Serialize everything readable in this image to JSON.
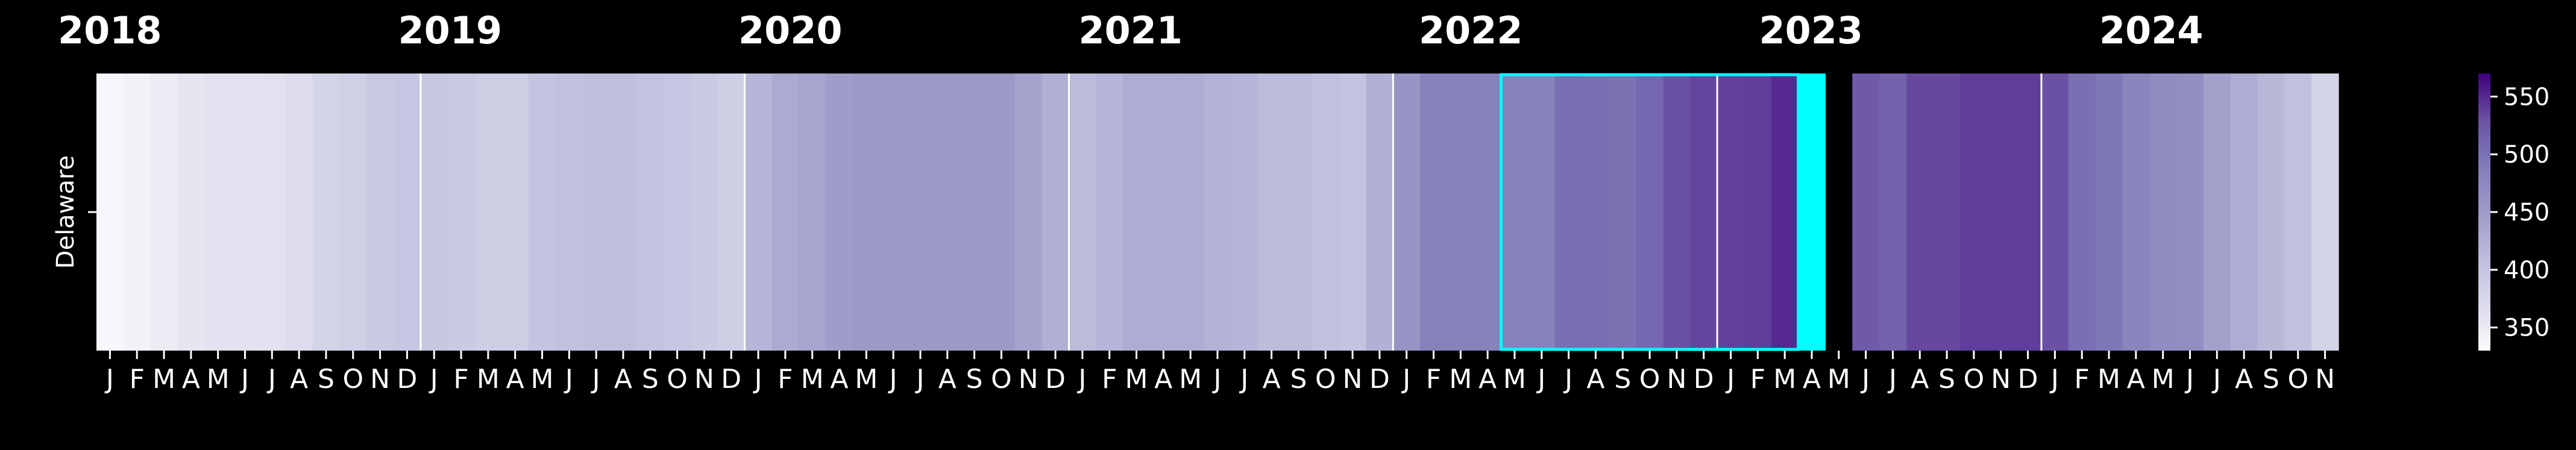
{
  "chart_data": {
    "type": "heatmap",
    "title": "",
    "xlabel": "",
    "ylabel": "",
    "row_labels": [
      "Delaware"
    ],
    "year_labels": [
      "2018",
      "2019",
      "2020",
      "2021",
      "2022",
      "2023",
      "2024"
    ],
    "month_labels": [
      "J",
      "F",
      "M",
      "A",
      "M",
      "J",
      "J",
      "A",
      "S",
      "O",
      "N",
      "D"
    ],
    "start": "2018-01",
    "values": [
      336,
      342,
      348,
      356,
      360,
      360,
      362,
      366,
      378,
      385,
      393,
      398,
      396,
      392,
      388,
      388,
      400,
      404,
      408,
      408,
      402,
      398,
      392,
      386,
      418,
      432,
      438,
      448,
      452,
      452,
      452,
      452,
      452,
      452,
      440,
      426,
      412,
      418,
      430,
      430,
      430,
      422,
      418,
      410,
      410,
      404,
      400,
      425,
      458,
      483,
      483,
      483,
      483,
      483,
      504,
      502,
      500,
      510,
      530,
      536,
      538,
      540,
      550,
      558,
      null,
      522,
      514,
      534,
      534,
      540,
      540,
      540,
      530,
      502,
      495,
      478,
      470,
      466,
      444,
      430,
      416,
      405,
      378
    ],
    "highlight_outline": {
      "start": "2022-05",
      "end": "2023-03",
      "color": "#00ffff"
    },
    "highlight_fill": {
      "period": "2023-04",
      "color": "#00ffff"
    },
    "colorbar": {
      "min": 330,
      "max": 570,
      "ticks": [
        350,
        400,
        450,
        500,
        550
      ],
      "colors": [
        "#fcfbfd",
        "#dadaeb",
        "#bcbddc",
        "#9e9ac8",
        "#807dba",
        "#6a51a3",
        "#3f007d"
      ]
    },
    "year_separators": true
  }
}
